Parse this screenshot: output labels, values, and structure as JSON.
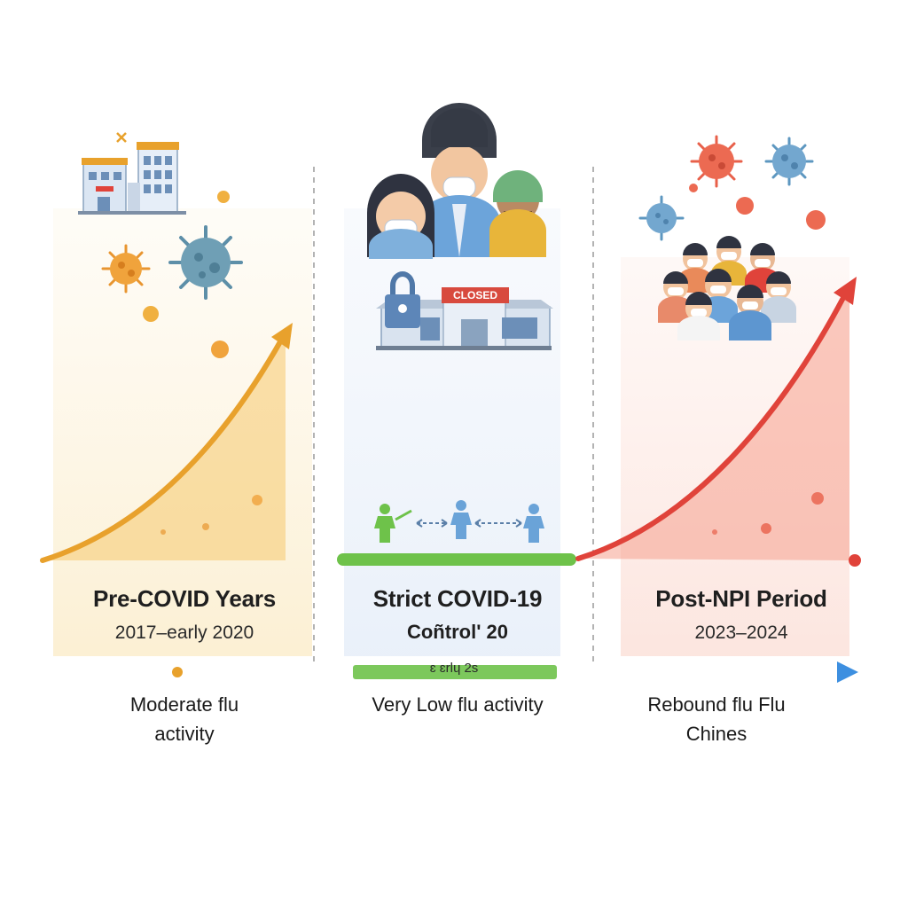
{
  "periods": [
    {
      "title": "Pre-COVID Years",
      "dates": "2017–early 2020",
      "flu_level": "Moderate flu\nactivity",
      "color": "#e8a12c",
      "icons": [
        "building-icon",
        "virus-icon"
      ]
    },
    {
      "title": "Strict COVID-19",
      "dates": "Coñtrolʹ 20",
      "dates_extra": "ɛ ɛrlɥ 2s",
      "flu_level": "Very Low flu activity",
      "closed_sign": "CLOSED",
      "color": "#6ec24a",
      "icons": [
        "masked-people-icon",
        "closed-lock-icon",
        "distancing-people-icon"
      ]
    },
    {
      "title": "Post-NPI Period",
      "dates": "2023–2024",
      "flu_level": "Rebound flu Flu\nChines",
      "color": "#e0433a",
      "icons": [
        "virus-icon",
        "masked-crowd-icon"
      ]
    }
  ],
  "colors": {
    "pre_area": "#fbe7bf",
    "strict_area": "#e7eef8",
    "post_area": "#fbd3c8",
    "timeline_start": "#e8a12c",
    "timeline_mid": "#6ec24a",
    "timeline_end": "#3d8fe0"
  }
}
